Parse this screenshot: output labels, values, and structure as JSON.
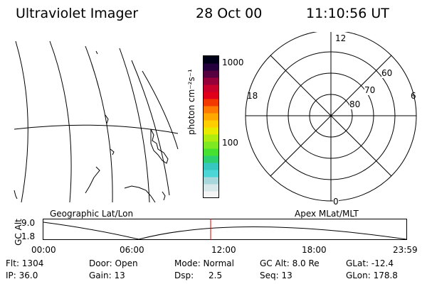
{
  "header": {
    "title": "Ultraviolet Imager",
    "date": "28 Oct 00",
    "time": "11:10:56 UT"
  },
  "colorbar": {
    "unit_label": "photon cm⁻²s⁻¹",
    "tick_1000": "1000",
    "tick_100": "100",
    "colors": [
      "#f4f4f4",
      "#d8e8ea",
      "#a8d8dc",
      "#4cd6d6",
      "#36c8c0",
      "#2cd070",
      "#46e030",
      "#7ee820",
      "#b0ec10",
      "#e8ea00",
      "#ffce00",
      "#ffa800",
      "#ff7a00",
      "#f23a00",
      "#e0001c",
      "#c8002c",
      "#96003a",
      "#560040",
      "#24003c",
      "#000018"
    ]
  },
  "polar_plot": {
    "mlt_top": "12",
    "mlt_left": "18",
    "mlt_right": "6",
    "mlt_bottom": "0",
    "lat_60": "60",
    "lat_70": "70",
    "lat_80": "80"
  },
  "map_label": "Geographic Lat/Lon",
  "apex_label": "Apex  MLat/MLT",
  "altitude_strip": {
    "ylabel": "GC Alt",
    "ytick_top": "9.0",
    "ytick_bottom": "1.8",
    "xticks": [
      "00:00",
      "06:00",
      "12:00",
      "18:00",
      "23:59"
    ],
    "current_time_color": "#e00000"
  },
  "info": {
    "flt": "Flt: 1304",
    "ip": "IP: 36.0",
    "door": "Door: Open",
    "gain": "Gain: 13",
    "mode": "Mode: Normal",
    "dsp_label": "Dsp:",
    "dsp_value": "2.5",
    "gc_alt": "GC Alt: 8.0 Re",
    "seq": "Seq: 13",
    "glat": "GLat: -12.4",
    "glon": "GLon: 178.8"
  }
}
